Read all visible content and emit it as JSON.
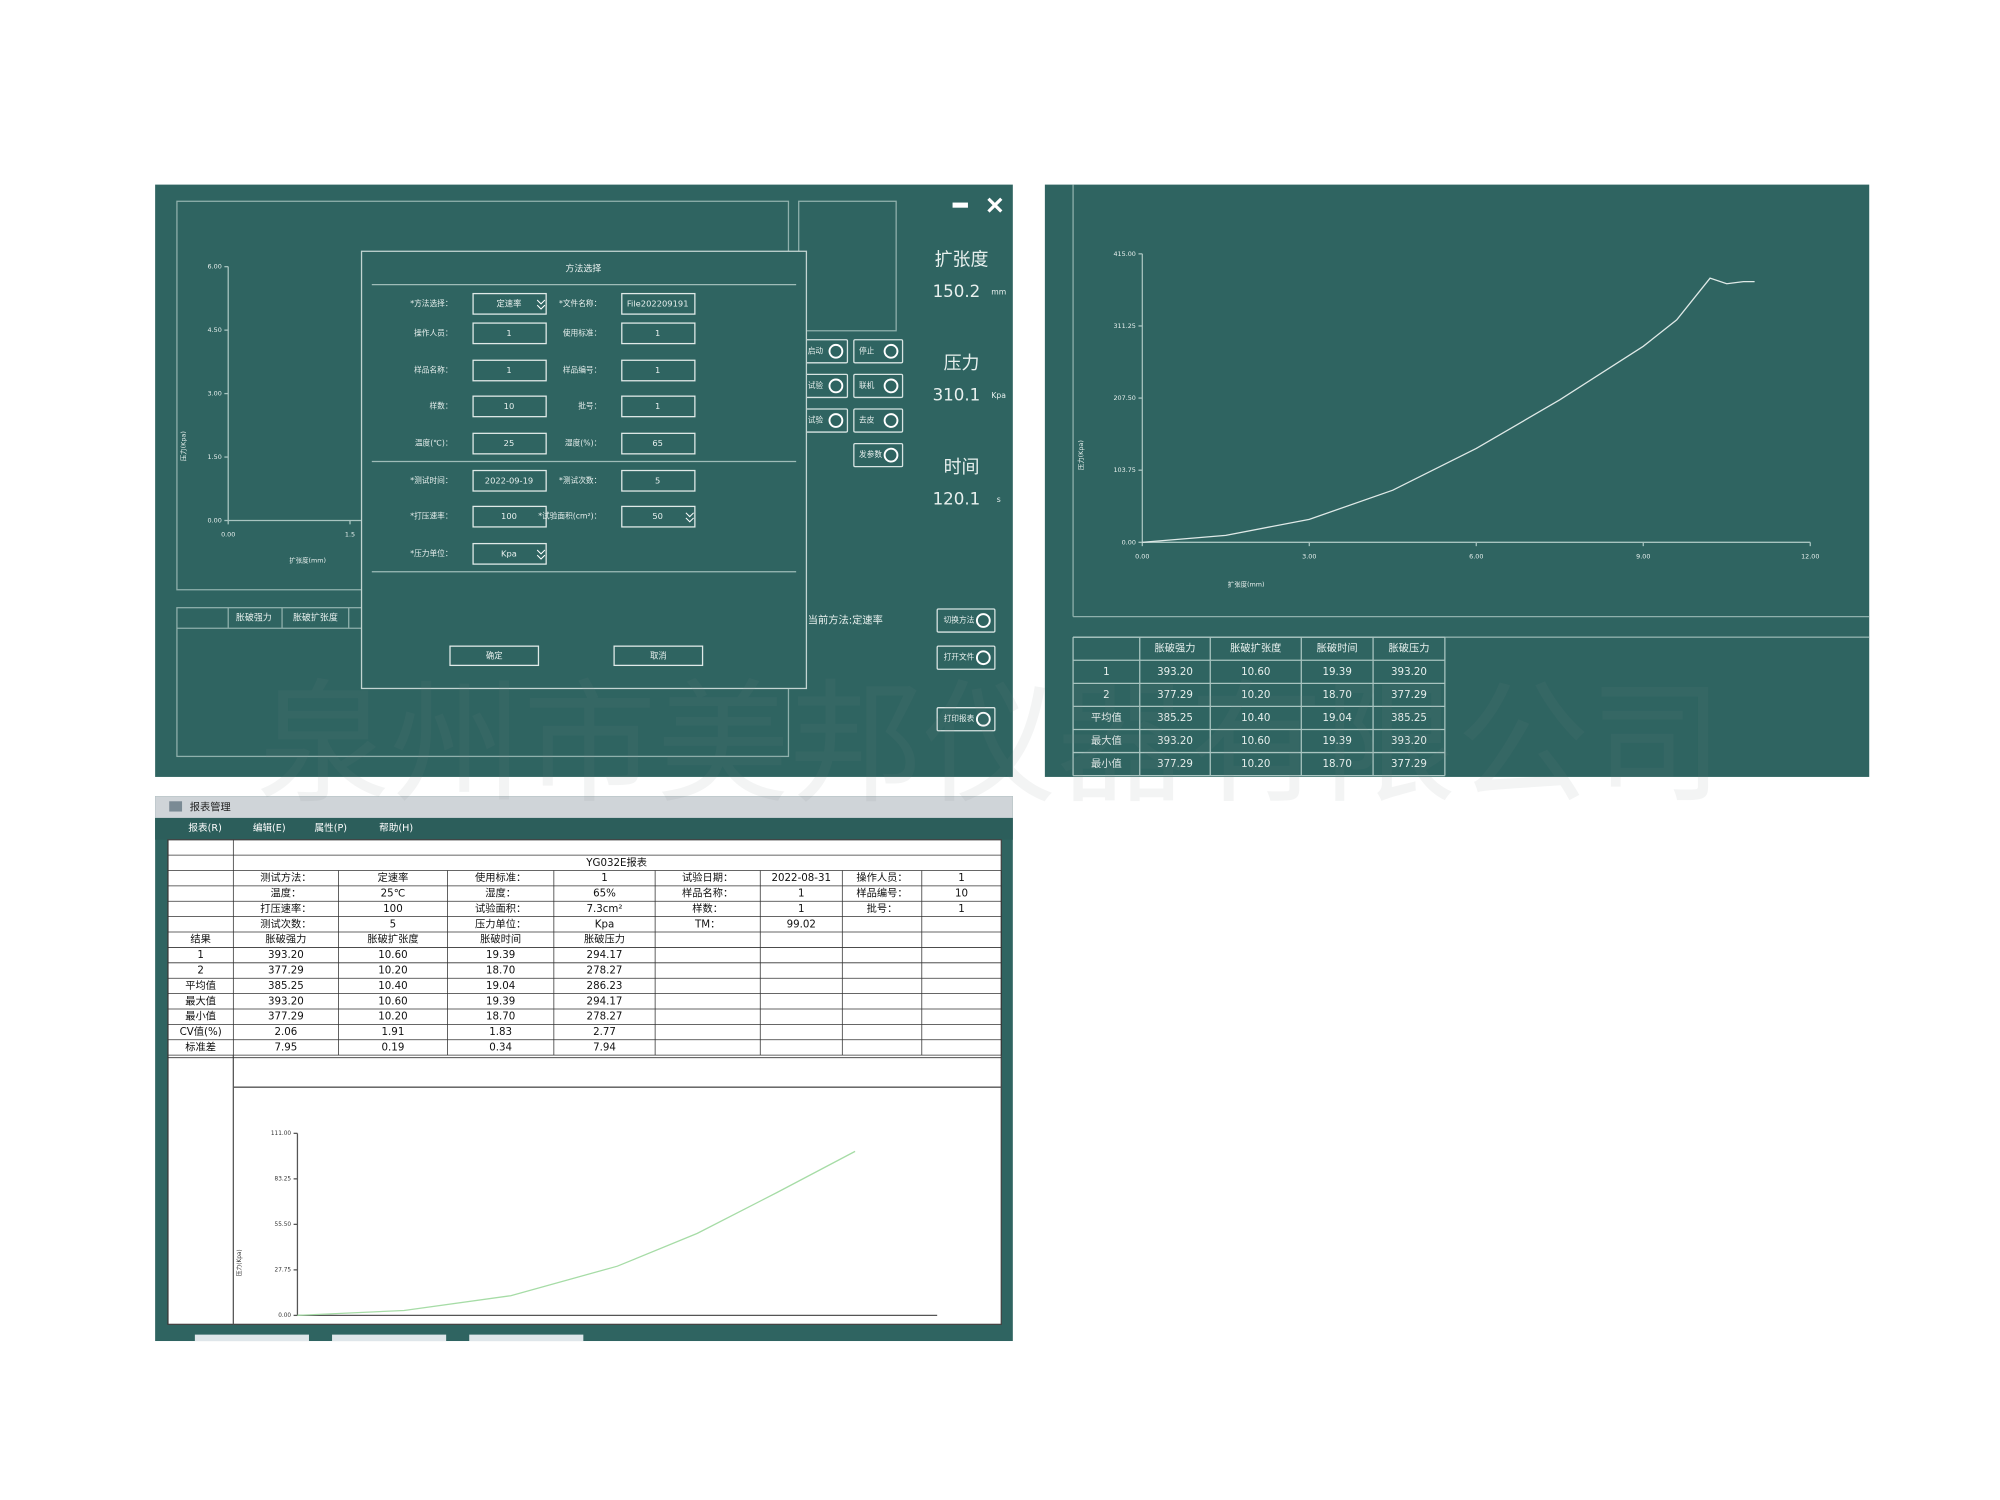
{
  "watermark": "泉州市美邦仪器有限公司",
  "panel1": {
    "chart": {
      "ylabel": "压力(Kpa)",
      "xlabel": "扩张度(mm)",
      "xlim": [
        0,
        6
      ],
      "ylim": [
        0,
        6
      ],
      "xticks": [
        {
          "value": 0,
          "label": "0.00"
        },
        {
          "value": 1.5,
          "label": "1.5"
        }
      ],
      "yticks": [
        {
          "value": 0,
          "label": "0.00"
        },
        {
          "value": 1.5,
          "label": "1.50"
        },
        {
          "value": 3,
          "label": "3.00"
        },
        {
          "value": 4.5,
          "label": "4.50"
        },
        {
          "value": 6,
          "label": "6.00"
        }
      ]
    },
    "readouts": [
      {
        "label": "扩张度",
        "value": "150.2",
        "unit": "mm"
      },
      {
        "label": "压力",
        "value": "310.1",
        "unit": "Kpa"
      },
      {
        "label": "时间",
        "value": "120.1",
        "unit": "s"
      }
    ],
    "left_buttons": [
      "启动",
      "试验",
      "试验"
    ],
    "right_buttons": [
      "停止",
      "联机",
      "去皮",
      "发参数"
    ],
    "current_method": "当前方法:定速率",
    "action_buttons": [
      "切换方法",
      "打开文件",
      "打印报表"
    ],
    "table_headers": [
      "胀破强力",
      "胀破扩张度"
    ],
    "dialog": {
      "title": "方法选择",
      "fields": [
        {
          "label": "*方法选择：",
          "value": "定速率",
          "dropdown": true
        },
        {
          "label": "*文件名称：",
          "value": "File202209191"
        },
        {
          "label": "操作人员：",
          "value": "1"
        },
        {
          "label": "使用标准：",
          "value": "1"
        },
        {
          "label": "样品名称：",
          "value": "1"
        },
        {
          "label": "样品编号：",
          "value": "1"
        },
        {
          "label": "样数：",
          "value": "10"
        },
        {
          "label": "批号：",
          "value": "1"
        },
        {
          "label": "温度(℃)：",
          "value": "25"
        },
        {
          "label": "湿度(%)：",
          "value": "65"
        },
        {
          "label": "*测试时间：",
          "value": "2022-09-19"
        },
        {
          "label": "*测试次数：",
          "value": "5"
        },
        {
          "label": "*打压速率：",
          "value": "100"
        },
        {
          "label": "*试验面积(cm²)：",
          "value": "50",
          "dropdown": true
        },
        {
          "label": "*压力单位：",
          "value": "Kpa",
          "dropdown": true
        }
      ],
      "buttons": [
        "确定",
        "取消"
      ]
    }
  },
  "panel2": {
    "chart": {
      "ylabel": "压力(Kpa)",
      "xlabel": "扩张度(mm)",
      "color": "#dfe9e7",
      "xlim": [
        0,
        12
      ],
      "ylim": [
        0,
        415
      ],
      "xticks": [
        {
          "value": 0,
          "label": "0.00"
        },
        {
          "value": 3,
          "label": "3.00"
        },
        {
          "value": 6,
          "label": "6.00"
        },
        {
          "value": 9,
          "label": "9.00"
        },
        {
          "value": 12,
          "label": "12.00"
        }
      ],
      "yticks": [
        {
          "value": 0,
          "label": "0.00"
        },
        {
          "value": 103.75,
          "label": "103.75"
        },
        {
          "value": 207.5,
          "label": "207.50"
        },
        {
          "value": 311.25,
          "label": "311.25"
        },
        {
          "value": 415,
          "label": "415.00"
        }
      ],
      "curve": {
        "x": [
          0,
          1.5,
          3,
          4.5,
          6,
          7.5,
          9,
          9.6,
          10.2,
          10.5,
          10.8,
          11
        ],
        "y": [
          0,
          10,
          33,
          75,
          135,
          205,
          282,
          320,
          380,
          372,
          375,
          375
        ]
      }
    },
    "table": {
      "headers": [
        "胀破强力",
        "胀破扩张度",
        "胀破时间",
        "胀破压力"
      ],
      "rows": [
        [
          "1",
          "393.20",
          "10.60",
          "19.39",
          "393.20"
        ],
        [
          "2",
          "377.29",
          "10.20",
          "18.70",
          "377.29"
        ],
        [
          "平均值",
          "385.25",
          "10.40",
          "19.04",
          "385.25"
        ],
        [
          "最大值",
          "393.20",
          "10.60",
          "19.39",
          "393.20"
        ],
        [
          "最小值",
          "377.29",
          "10.20",
          "18.70",
          "377.29"
        ]
      ]
    }
  },
  "panel3": {
    "window_title": "报表管理",
    "menu": [
      "报表(R)",
      "编辑(E)",
      "属性(P)",
      "帮助(H)"
    ],
    "report": {
      "title": "YG032E报表",
      "info": [
        [
          "测试方法：",
          "定速率",
          "使用标准：",
          "1",
          "试验日期：",
          "2022-08-31",
          "操作人员：",
          "1"
        ],
        [
          "温度：",
          "25℃",
          "湿度：",
          "65%",
          "样品名称：",
          "1",
          "样品编号：",
          "10"
        ],
        [
          "打压速率：",
          "100",
          "试验面积：",
          "7.3cm²",
          "样数：",
          "1",
          "批号：",
          "1"
        ],
        [
          "测试次数：",
          "5",
          "压力单位：",
          "Kpa",
          "TM：",
          "99.02"
        ]
      ],
      "results": {
        "label": "结果",
        "headers": [
          "胀破强力",
          "胀破扩张度",
          "胀破时间",
          "胀破压力"
        ],
        "rows": [
          [
            "1",
            "393.20",
            "10.60",
            "19.39",
            "294.17"
          ],
          [
            "2",
            "377.29",
            "10.20",
            "18.70",
            "278.27"
          ],
          [
            "平均值",
            "385.25",
            "10.40",
            "19.04",
            "286.23"
          ],
          [
            "最大值",
            "393.20",
            "10.60",
            "19.39",
            "294.17"
          ],
          [
            "最小值",
            "377.29",
            "10.20",
            "18.70",
            "278.27"
          ],
          [
            "CV值(%)",
            "2.06",
            "1.91",
            "1.83",
            "2.77"
          ],
          [
            "标准差",
            "7.95",
            "0.19",
            "0.34",
            "7.94"
          ]
        ]
      },
      "chart": {
        "ylabel": "压力(Kpa)",
        "color": "#a6dca6",
        "xlim": [
          0,
          12
        ],
        "ylim": [
          0,
          111
        ],
        "yticks": [
          {
            "value": 0,
            "label": "0.00"
          },
          {
            "value": 27.75,
            "label": "27.75"
          },
          {
            "value": 55.5,
            "label": "55.50"
          },
          {
            "value": 83.25,
            "label": "83.25"
          },
          {
            "value": 111,
            "label": "111.00"
          }
        ],
        "curve": {
          "x": [
            0,
            2,
            4,
            6,
            7.5,
            9,
            10.46
          ],
          "y": [
            0,
            3,
            12,
            30,
            50,
            75,
            100
          ]
        }
      }
    }
  }
}
